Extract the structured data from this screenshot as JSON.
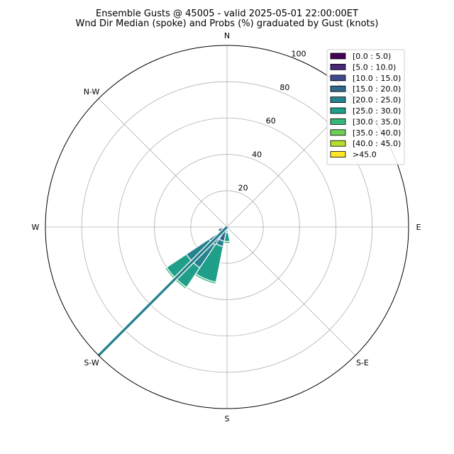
{
  "chart_data": {
    "type": "windrose",
    "title": "Ensemble Gusts @ 45005 - valid 2025-05-01 22:00:00ET",
    "subtitle": "Wnd Dir Median (spoke) and Probs (%) graduated by Gust (knots)",
    "compass_labels": [
      "N",
      "E",
      "S",
      "S-E",
      "S-W",
      "W",
      "N-W"
    ],
    "compass_angles": [
      0,
      90,
      180,
      135,
      225,
      270,
      315
    ],
    "radial_ticks": [
      20,
      40,
      60,
      80,
      100
    ],
    "rmax": 100,
    "legend_placement": "top-right",
    "bins": [
      {
        "label": "[0.0 : 5.0)",
        "color": "#440154"
      },
      {
        "label": "[5.0 : 10.0)",
        "color": "#482878"
      },
      {
        "label": "[10.0 : 15.0)",
        "color": "#3e4989"
      },
      {
        "label": "[15.0 : 20.0)",
        "color": "#31688e"
      },
      {
        "label": "[20.0 : 25.0)",
        "color": "#26828e"
      },
      {
        "label": "[25.0 : 30.0)",
        "color": "#1f9e89"
      },
      {
        "label": "[30.0 : 35.0)",
        "color": "#35b779"
      },
      {
        "label": "[35.0 : 40.0)",
        "color": "#6ece58"
      },
      {
        "label": "[40.0 : 45.0)",
        "color": "#b5de2b"
      },
      {
        "label": ">45.0",
        "color": "#fde725"
      }
    ],
    "sectors": [
      {
        "direction": 180,
        "segments": [
          {
            "bin": 4,
            "from": 0,
            "to": 3
          },
          {
            "bin": 5,
            "from": 3,
            "to": 8
          },
          {
            "bin": 6,
            "from": 8,
            "to": 9
          }
        ]
      },
      {
        "direction": 202.5,
        "segments": [
          {
            "bin": 3,
            "from": 0,
            "to": 8
          },
          {
            "bin": 4,
            "from": 8,
            "to": 11
          },
          {
            "bin": 5,
            "from": 11,
            "to": 31
          },
          {
            "bin": 6,
            "from": 31,
            "to": 32
          }
        ]
      },
      {
        "direction": 225,
        "segments": [
          {
            "bin": 3,
            "from": 0,
            "to": 12
          },
          {
            "bin": 4,
            "from": 12,
            "to": 27
          },
          {
            "bin": 5,
            "from": 27,
            "to": 40
          },
          {
            "bin": 6,
            "from": 40,
            "to": 41
          }
        ]
      },
      {
        "direction": 247.5,
        "segments": [
          {
            "bin": 3,
            "from": 0,
            "to": 5
          }
        ]
      },
      {
        "direction": 270,
        "segments": [
          {
            "bin": 3,
            "from": 0,
            "to": 2
          }
        ]
      }
    ],
    "median_spoke": {
      "direction": 225,
      "value": 100
    }
  }
}
